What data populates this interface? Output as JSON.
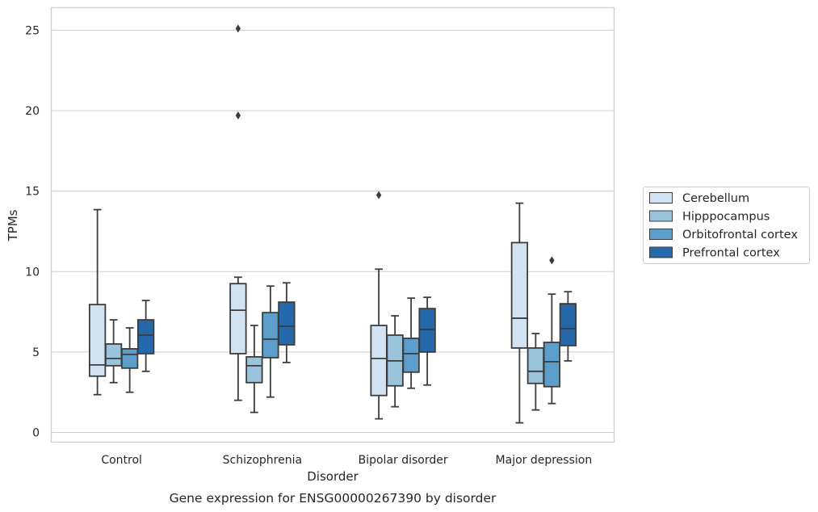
{
  "chart_data": {
    "type": "box",
    "title": "",
    "caption": "Gene expression for ENSG00000267390 by disorder",
    "xlabel": "Disorder",
    "ylabel": "TPMs",
    "ylim": [
      -0.6,
      26.4
    ],
    "yticks": [
      0,
      5,
      10,
      15,
      20,
      25
    ],
    "grid": "horizontal",
    "legend_position": "right",
    "categories": [
      "Control",
      "Schizophrenia",
      "Bipolar disorder",
      "Major depression"
    ],
    "series": [
      {
        "name": "Cerebellum",
        "color": "#d3e2f0",
        "boxes": [
          {
            "whisker_low": 2.35,
            "q1": 3.5,
            "median": 4.2,
            "q3": 7.95,
            "whisker_high": 13.85,
            "outliers": []
          },
          {
            "whisker_low": 2.0,
            "q1": 4.9,
            "median": 7.6,
            "q3": 9.25,
            "whisker_high": 9.65,
            "outliers": [
              19.7,
              25.1
            ]
          },
          {
            "whisker_low": 0.85,
            "q1": 2.3,
            "median": 4.6,
            "q3": 6.65,
            "whisker_high": 10.15,
            "outliers": [
              14.75
            ]
          },
          {
            "whisker_low": 0.6,
            "q1": 5.25,
            "median": 7.1,
            "q3": 11.8,
            "whisker_high": 14.25,
            "outliers": []
          }
        ]
      },
      {
        "name": "Hipppocampus",
        "color": "#9ac3dc",
        "boxes": [
          {
            "whisker_low": 3.1,
            "q1": 4.15,
            "median": 4.6,
            "q3": 5.5,
            "whisker_high": 7.0,
            "outliers": []
          },
          {
            "whisker_low": 1.25,
            "q1": 3.1,
            "median": 4.15,
            "q3": 4.7,
            "whisker_high": 6.65,
            "outliers": []
          },
          {
            "whisker_low": 1.6,
            "q1": 2.9,
            "median": 4.45,
            "q3": 6.05,
            "whisker_high": 7.25,
            "outliers": []
          },
          {
            "whisker_low": 1.4,
            "q1": 3.05,
            "median": 3.8,
            "q3": 5.25,
            "whisker_high": 6.15,
            "outliers": []
          }
        ]
      },
      {
        "name": "Orbitofrontal cortex",
        "color": "#5a9ec9",
        "boxes": [
          {
            "whisker_low": 2.5,
            "q1": 4.0,
            "median": 4.85,
            "q3": 5.2,
            "whisker_high": 6.5,
            "outliers": []
          },
          {
            "whisker_low": 2.2,
            "q1": 4.65,
            "median": 5.8,
            "q3": 7.45,
            "whisker_high": 9.1,
            "outliers": []
          },
          {
            "whisker_low": 2.75,
            "q1": 3.75,
            "median": 4.9,
            "q3": 5.85,
            "whisker_high": 8.35,
            "outliers": []
          },
          {
            "whisker_low": 1.8,
            "q1": 2.85,
            "median": 4.4,
            "q3": 5.6,
            "whisker_high": 8.6,
            "outliers": [
              10.7
            ]
          }
        ]
      },
      {
        "name": "Prefrontal cortex",
        "color": "#2669aa",
        "boxes": [
          {
            "whisker_low": 3.8,
            "q1": 4.9,
            "median": 6.05,
            "q3": 7.0,
            "whisker_high": 8.2,
            "outliers": []
          },
          {
            "whisker_low": 4.35,
            "q1": 5.45,
            "median": 6.6,
            "q3": 8.1,
            "whisker_high": 9.3,
            "outliers": []
          },
          {
            "whisker_low": 2.95,
            "q1": 5.0,
            "median": 6.4,
            "q3": 7.7,
            "whisker_high": 8.4,
            "outliers": []
          },
          {
            "whisker_low": 4.45,
            "q1": 5.4,
            "median": 6.45,
            "q3": 8.0,
            "whisker_high": 8.75,
            "outliers": []
          }
        ]
      }
    ]
  }
}
